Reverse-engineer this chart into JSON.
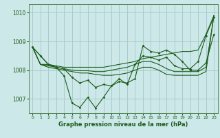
{
  "background_color": "#cce8e8",
  "grid_color": "#aacccc",
  "line_color": "#1a5c1a",
  "title": "Graphe pression niveau de la mer (hPa)",
  "xlim": [
    -0.5,
    23.5
  ],
  "ylim": [
    1006.5,
    1010.3
  ],
  "yticks": [
    1007,
    1008,
    1009,
    1010
  ],
  "xticks": [
    0,
    1,
    2,
    3,
    4,
    5,
    6,
    7,
    8,
    9,
    10,
    11,
    12,
    13,
    14,
    15,
    16,
    17,
    18,
    19,
    20,
    21,
    22,
    23
  ],
  "series_plain": [
    [
      1008.8,
      1008.2,
      1008.2,
      1008.15,
      1008.1,
      1008.1,
      1008.1,
      1008.1,
      1008.1,
      1008.1,
      1008.15,
      1008.2,
      1008.25,
      1008.3,
      1008.4,
      1008.45,
      1008.5,
      1008.55,
      1008.6,
      1008.65,
      1008.65,
      1008.7,
      1009.25,
      1009.9
    ],
    [
      1008.8,
      1008.2,
      1008.15,
      1008.1,
      1008.05,
      1008.0,
      1007.98,
      1007.98,
      1007.95,
      1007.95,
      1008.0,
      1008.05,
      1008.1,
      1008.2,
      1008.3,
      1008.3,
      1008.2,
      1008.05,
      1007.95,
      1007.95,
      1007.95,
      1007.95,
      1008.1,
      1009.9
    ],
    [
      1008.8,
      1008.2,
      1008.1,
      1008.05,
      1008.0,
      1007.95,
      1007.9,
      1007.9,
      1007.85,
      1007.82,
      1007.82,
      1007.85,
      1007.9,
      1008.0,
      1008.1,
      1008.1,
      1008.0,
      1007.85,
      1007.82,
      1007.82,
      1007.82,
      1007.82,
      1007.95,
      1009.9
    ]
  ],
  "series_marked": [
    {
      "x": [
        0,
        1,
        2,
        3,
        4,
        5,
        6,
        7,
        8,
        9,
        10,
        11,
        12,
        13,
        14,
        15,
        16,
        17,
        18,
        19,
        20,
        21,
        22,
        23
      ],
      "y": [
        1008.8,
        1008.5,
        1008.2,
        1008.1,
        1008.05,
        1007.75,
        1007.55,
        1007.65,
        1007.4,
        1007.5,
        1007.45,
        1007.7,
        1007.5,
        1008.2,
        1008.5,
        1008.45,
        1008.35,
        1008.45,
        1008.15,
        1008.05,
        1008.05,
        1008.3,
        1009.2,
        1009.85
      ]
    },
    {
      "x": [
        0,
        1,
        2,
        3,
        4,
        5,
        6,
        7,
        8,
        9,
        10,
        11,
        12,
        13,
        14,
        15,
        16,
        17,
        18,
        19,
        20,
        21,
        22,
        23
      ],
      "y": [
        1008.8,
        1008.5,
        1008.2,
        1008.1,
        1007.8,
        1006.85,
        1006.7,
        1007.05,
        1006.68,
        1007.05,
        1007.45,
        1007.6,
        1007.55,
        1007.7,
        1008.85,
        1008.65,
        1008.6,
        1008.7,
        1008.55,
        1008.3,
        1008.0,
        1008.0,
        1008.25,
        1009.25
      ]
    }
  ]
}
